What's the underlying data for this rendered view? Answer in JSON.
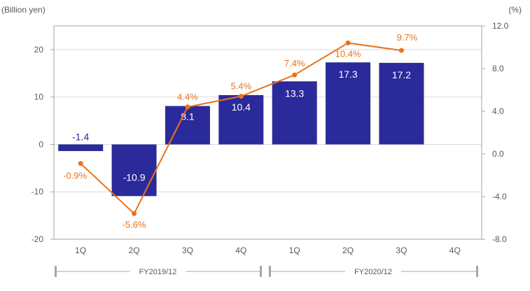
{
  "chart_data": {
    "type": "bar+line",
    "left_axis_label": "(Billion yen)",
    "right_axis_label": "(%)",
    "categories": [
      "1Q",
      "2Q",
      "3Q",
      "4Q",
      "1Q",
      "2Q",
      "3Q",
      "4Q"
    ],
    "groups": [
      {
        "label": "FY2019/12",
        "from": 0,
        "to": 3
      },
      {
        "label": "FY2020/12",
        "from": 4,
        "to": 7
      }
    ],
    "left_ylim": [
      -20,
      25
    ],
    "left_ticks": [
      -20,
      -10,
      0,
      10,
      20
    ],
    "right_ylim": [
      -8.0,
      12.0
    ],
    "right_ticks": [
      "-8.0",
      "-4.0",
      "0.0",
      "4.0",
      "8.0",
      "12.0"
    ],
    "bars": {
      "values": [
        -1.4,
        -10.9,
        8.1,
        10.4,
        13.3,
        17.3,
        17.2,
        null
      ],
      "labels": [
        "-1.4",
        "-10.9",
        "8.1",
        "10.4",
        "13.3",
        "17.3",
        "17.2",
        ""
      ],
      "color": "#2b2a9a"
    },
    "line": {
      "values": [
        -0.9,
        -5.6,
        4.4,
        5.4,
        7.4,
        10.4,
        9.7,
        null
      ],
      "labels": [
        "-0.9%",
        "-5.6%",
        "4.4%",
        "5.4%",
        "7.4%",
        "10.4%",
        "9.7%",
        ""
      ],
      "color": "#e8731a"
    },
    "grid": true
  }
}
